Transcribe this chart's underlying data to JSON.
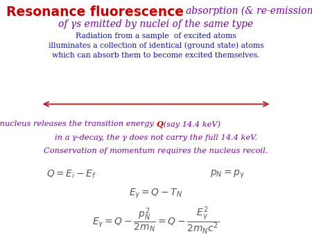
{
  "title_bold": "Resonance fluorescence",
  "title_italic1": "absorption (& re-emission)",
  "title_italic2": "of γs emitted by nuclei of the same type",
  "subtitle": "Radiation from a sample  of excited atoms\nilluminates a collection of identical (ground state) atoms\nwhich can absorb them to become excited themselves.",
  "para_line1a": "When an nucleus releases the transition energy ",
  "para_Q": "Q",
  "para_line1b": " (say 14.4 keV)",
  "para_line2": "in a γ-decay, the γ does not carry the full 14.4 keV.",
  "para_line3": "Conservation of momentum requires the nucleus recoil.",
  "eq1": "$Q = E_i - E_f$",
  "eq2": "$p_N = p_{\\gamma}$",
  "eq3": "$E_{\\gamma} = Q - T_N$",
  "eq4": "$E_{\\gamma} = Q - \\dfrac{p_N^2}{2m_N} = Q - \\dfrac{E_{\\gamma}^2}{2m_N c^2}$",
  "bg_color": "#ffffff",
  "title_bold_color": "#cc0000",
  "title_italic_color": "#7b00b0",
  "subtitle_color": "#1010cc",
  "para_color": "#7b00b0",
  "Q_color": "#cc0000",
  "eq_color": "#555555",
  "arrow_color": "#bb2222"
}
